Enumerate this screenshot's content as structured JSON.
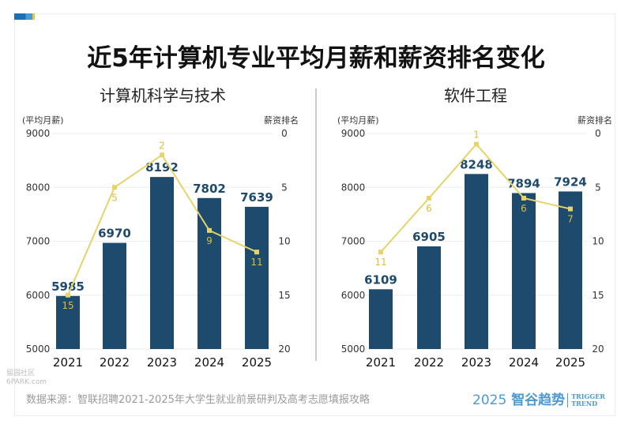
{
  "title": "近5年计算机专业平均月薪和薪资排名变化",
  "source": "数据来源：智联招聘2021-2025年大学生就业前景研判及高考志愿填报攻略",
  "logo": {
    "year": "2025",
    "name": "智谷趋势",
    "en1": "TRIGGER",
    "en2": "TREND"
  },
  "watermark": {
    "line1": "留园社区",
    "line2": "6PARK.com"
  },
  "colors": {
    "bar": "#1d4a6d",
    "line": "#e6d36a"
  },
  "chart_data": [
    {
      "type": "bar+line",
      "title": "计算机科学与技术",
      "ylabel_left": "(平均月薪)",
      "ylabel_right": "薪资排名",
      "categories": [
        "2021",
        "2022",
        "2023",
        "2024",
        "2025"
      ],
      "salary": [
        5985,
        6970,
        8192,
        7802,
        7639
      ],
      "rank": [
        15,
        5,
        2,
        9,
        11
      ],
      "ylim_left": [
        5000,
        9000
      ],
      "yticks_left": [
        5000,
        6000,
        7000,
        8000,
        9000
      ],
      "ylim_right": [
        0,
        20
      ],
      "yticks_right": [
        0,
        5,
        10,
        15,
        20
      ],
      "right_axis_inverted": true,
      "grid": true
    },
    {
      "type": "bar+line",
      "title": "软件工程",
      "ylabel_left": "(平均月薪)",
      "ylabel_right": "薪资排名",
      "categories": [
        "2021",
        "2022",
        "2023",
        "2024",
        "2025"
      ],
      "salary": [
        6109,
        6905,
        8248,
        7894,
        7924
      ],
      "rank": [
        11,
        6,
        1,
        6,
        7
      ],
      "ylim_left": [
        5000,
        9000
      ],
      "yticks_left": [
        5000,
        6000,
        7000,
        8000,
        9000
      ],
      "ylim_right": [
        0,
        20
      ],
      "yticks_right": [
        0,
        5,
        10,
        15,
        20
      ],
      "right_axis_inverted": true,
      "grid": true
    }
  ]
}
